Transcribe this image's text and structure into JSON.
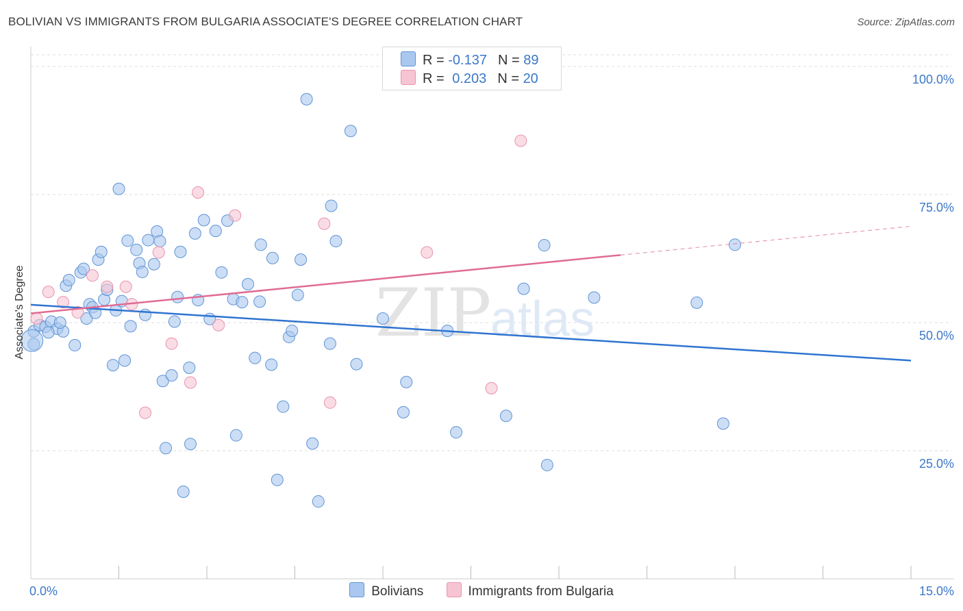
{
  "title": "BOLIVIAN VS IMMIGRANTS FROM BULGARIA ASSOCIATE'S DEGREE CORRELATION CHART",
  "source": "Source: ZipAtlas.com",
  "watermark": {
    "zip": "ZIP",
    "atlas": "atlas"
  },
  "legend": {
    "rows": [
      {
        "r_label": "R = ",
        "r_value": "-0.137",
        "n_label": "N = ",
        "n_value": "89"
      },
      {
        "r_label": "R = ",
        "r_value": "0.203",
        "n_label": "N = ",
        "n_value": "20"
      }
    ]
  },
  "bottom_legend": {
    "series1": "Bolivians",
    "series2": "Immigrants from Bulgaria"
  },
  "colors": {
    "blue_fill": "#aac8ef",
    "blue_stroke": "#5f93d6",
    "blue_line": "#2f74d0",
    "pink_fill": "#f7c4d3",
    "pink_stroke": "#e893ad",
    "pink_line": "#e06b93",
    "accent_text": "#3b78c9",
    "grid": "#dcdcdc"
  },
  "chart_data": {
    "type": "scatter",
    "title": "BOLIVIAN VS IMMIGRANTS FROM BULGARIA ASSOCIATE'S DEGREE CORRELATION CHART",
    "xlabel": "",
    "ylabel": "Associate's Degree",
    "xlim": [
      0,
      15
    ],
    "ylim": [
      0,
      100
    ],
    "x_tick_labels": [
      "0.0%",
      "15.0%"
    ],
    "y_ticks": [
      25,
      50,
      75,
      100
    ],
    "y_tick_labels": [
      "25.0%",
      "50.0%",
      "75.0%",
      "100.0%"
    ],
    "grid": true,
    "legend_position": "top-center",
    "series": [
      {
        "name": "Bolivians",
        "r": -0.137,
        "n": 89,
        "trend": {
          "x0": 0,
          "y0": 53.5,
          "x1": 15,
          "y1": 42.6,
          "solid_until": 15
        },
        "points": [
          [
            0.05,
            48.3
          ],
          [
            0.15,
            49.5
          ],
          [
            0.25,
            49.2
          ],
          [
            0.35,
            50.2
          ],
          [
            0.45,
            48.8
          ],
          [
            0.55,
            48.3
          ],
          [
            0.6,
            57.2
          ],
          [
            0.65,
            58.3
          ],
          [
            0.75,
            45.6
          ],
          [
            0.85,
            59.8
          ],
          [
            0.9,
            60.5
          ],
          [
            0.95,
            50.8
          ],
          [
            1.0,
            53.6
          ],
          [
            1.05,
            53.0
          ],
          [
            1.15,
            62.3
          ],
          [
            1.2,
            63.8
          ],
          [
            1.25,
            54.5
          ],
          [
            1.3,
            56.4
          ],
          [
            1.4,
            41.7
          ],
          [
            1.45,
            52.4
          ],
          [
            1.5,
            76.1
          ],
          [
            1.55,
            54.2
          ],
          [
            1.6,
            42.6
          ],
          [
            1.65,
            66.0
          ],
          [
            1.7,
            49.3
          ],
          [
            1.8,
            64.2
          ],
          [
            1.85,
            61.6
          ],
          [
            1.9,
            59.9
          ],
          [
            1.95,
            51.5
          ],
          [
            2.0,
            66.1
          ],
          [
            2.1,
            61.4
          ],
          [
            2.15,
            67.8
          ],
          [
            2.2,
            65.9
          ],
          [
            2.25,
            38.6
          ],
          [
            2.3,
            25.5
          ],
          [
            2.4,
            39.7
          ],
          [
            2.45,
            50.2
          ],
          [
            2.5,
            55.0
          ],
          [
            2.55,
            63.8
          ],
          [
            2.6,
            17.0
          ],
          [
            2.7,
            41.2
          ],
          [
            2.72,
            26.3
          ],
          [
            2.8,
            67.4
          ],
          [
            2.85,
            54.4
          ],
          [
            2.95,
            70.0
          ],
          [
            3.05,
            50.7
          ],
          [
            3.15,
            67.9
          ],
          [
            3.25,
            59.8
          ],
          [
            3.35,
            69.9
          ],
          [
            3.45,
            54.6
          ],
          [
            3.5,
            28.0
          ],
          [
            3.6,
            54.0
          ],
          [
            3.7,
            57.5
          ],
          [
            3.82,
            43.1
          ],
          [
            3.9,
            54.1
          ],
          [
            3.92,
            65.2
          ],
          [
            4.1,
            41.8
          ],
          [
            4.12,
            62.6
          ],
          [
            4.2,
            19.3
          ],
          [
            4.3,
            33.6
          ],
          [
            4.4,
            47.2
          ],
          [
            4.45,
            48.4
          ],
          [
            4.55,
            55.4
          ],
          [
            4.6,
            62.3
          ],
          [
            4.7,
            93.6
          ],
          [
            4.8,
            26.4
          ],
          [
            4.9,
            15.1
          ],
          [
            5.1,
            45.9
          ],
          [
            5.12,
            72.8
          ],
          [
            5.2,
            65.9
          ],
          [
            5.45,
            87.4
          ],
          [
            5.55,
            41.9
          ],
          [
            6.0,
            50.8
          ],
          [
            6.4,
            38.4
          ],
          [
            6.35,
            32.5
          ],
          [
            7.1,
            48.4
          ],
          [
            7.25,
            28.6
          ],
          [
            8.1,
            31.8
          ],
          [
            8.4,
            56.6
          ],
          [
            8.75,
            65.1
          ],
          [
            8.8,
            22.2
          ],
          [
            9.6,
            54.9
          ],
          [
            11.35,
            53.9
          ],
          [
            11.8,
            30.3
          ],
          [
            12.0,
            65.2
          ],
          [
            0.05,
            45.8
          ],
          [
            0.3,
            48.1
          ],
          [
            0.5,
            50.0
          ],
          [
            1.1,
            51.9
          ]
        ]
      },
      {
        "name": "Immigrants from Bulgaria",
        "r": 0.203,
        "n": 20,
        "trend": {
          "x0": 0,
          "y0": 51.8,
          "x1": 15,
          "y1": 68.8,
          "solid_until": 10.05
        },
        "points": [
          [
            0.1,
            50.8
          ],
          [
            0.3,
            56.0
          ],
          [
            0.55,
            54.0
          ],
          [
            0.8,
            52.0
          ],
          [
            1.05,
            59.2
          ],
          [
            1.3,
            57.0
          ],
          [
            1.62,
            57.0
          ],
          [
            1.72,
            53.6
          ],
          [
            1.95,
            32.4
          ],
          [
            2.18,
            63.7
          ],
          [
            2.4,
            45.9
          ],
          [
            2.72,
            38.3
          ],
          [
            2.85,
            75.4
          ],
          [
            3.2,
            49.5
          ],
          [
            3.48,
            70.9
          ],
          [
            5.0,
            69.3
          ],
          [
            5.1,
            34.4
          ],
          [
            6.75,
            63.7
          ],
          [
            7.85,
            37.2
          ],
          [
            8.35,
            85.5
          ]
        ]
      }
    ]
  }
}
